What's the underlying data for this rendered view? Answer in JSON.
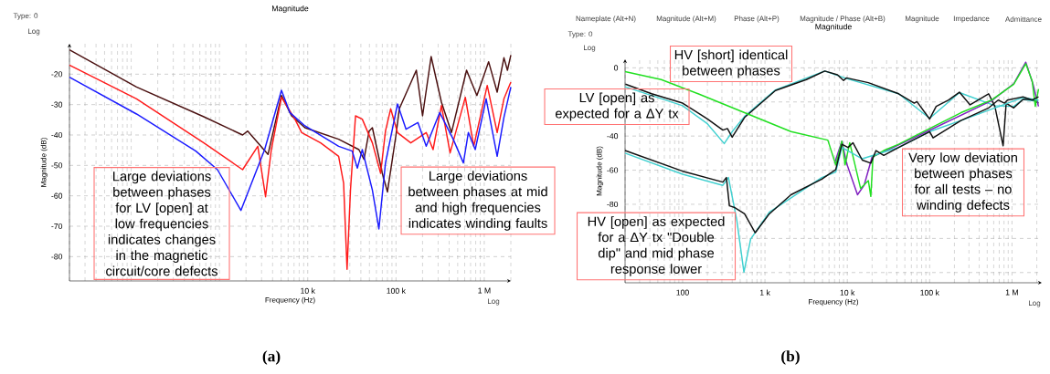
{
  "chart_data": [
    {
      "type": "line",
      "title": "Magnitude",
      "xlabel": "Frequency (Hz)",
      "ylabel": "Magnitude (dB)",
      "log": "x",
      "grid": true,
      "xlim": [
        20,
        2000000
      ],
      "ylim": [
        -88,
        -10
      ],
      "xticks": [
        {
          "value": 10000,
          "label": "10 k"
        },
        {
          "value": 100000,
          "label": "100 k"
        },
        {
          "value": 1000000,
          "label": "1 M"
        }
      ],
      "yticks": [
        -20,
        -30,
        -40,
        -50,
        -60,
        -70,
        -80
      ],
      "series": [
        {
          "color": "#4a1010",
          "x": [
            20,
            115,
            665,
            1830,
            2090,
            3550,
            5040,
            6560,
            9300,
            22400,
            38000,
            43400,
            49600,
            54000,
            70000,
            80000,
            100000,
            109000,
            170000,
            200000,
            250000,
            327000,
            425000,
            630000,
            825000,
            1120000,
            1400000,
            1670000,
            1830000,
            2000000
          ],
          "values": [
            -12,
            -24.2,
            -34,
            -40,
            -38.7,
            -46.4,
            -27,
            -33.7,
            -37.6,
            -41.4,
            -44.8,
            -48,
            -38.7,
            -37.6,
            -52.6,
            -58.7,
            -40,
            -31.4,
            -18.7,
            -33.7,
            -14.2,
            -29.2,
            -39.2,
            -18.7,
            -27,
            -15.9,
            -25.9,
            -14.6,
            -18.7,
            -13.7
          ]
        },
        {
          "color": "#ff1a1a",
          "x": [
            20,
            115,
            665,
            1830,
            2720,
            3330,
            3870,
            5040,
            7160,
            8540,
            14000,
            22400,
            25500,
            27900,
            30500,
            34800,
            41500,
            54000,
            67000,
            76000,
            87000,
            104000,
            147000,
            220000,
            263000,
            327000,
            410000,
            610000,
            760000,
            1080000,
            1400000,
            1670000,
            2000000
          ],
          "values": [
            -17,
            -28.1,
            -42.6,
            -51.4,
            -43.7,
            -60.3,
            -44.8,
            -27.6,
            -34.8,
            -39.2,
            -42.6,
            -47,
            -55.9,
            -84.2,
            -58.1,
            -33.7,
            -34.8,
            -42.6,
            -52.6,
            -38.7,
            -31.4,
            -39.2,
            -42.6,
            -39.2,
            -44.8,
            -30.3,
            -45.9,
            -27.6,
            -43.7,
            -23.7,
            -39.2,
            -28.1,
            -22.6
          ]
        },
        {
          "color": "#1a1aff",
          "x": [
            20,
            115,
            540,
            950,
            1750,
            3250,
            5040,
            6270,
            9300,
            22400,
            31900,
            36500,
            41500,
            54000,
            64000,
            76000,
            104000,
            130000,
            177000,
            220000,
            313000,
            445000,
            580000,
            660000,
            790000,
            1050000,
            1400000,
            1670000,
            2000000
          ],
          "values": [
            -21,
            -33.1,
            -45.3,
            -51.4,
            -64.8,
            -44.8,
            -25.3,
            -32.6,
            -37,
            -43.7,
            -45.3,
            -50.9,
            -44.8,
            -58.1,
            -70.9,
            -49.2,
            -29.8,
            -38.1,
            -35.9,
            -43.7,
            -32.6,
            -41.4,
            -49.2,
            -39.2,
            -44.8,
            -28.1,
            -47,
            -34.2,
            -24.2
          ]
        }
      ],
      "annotations": [
        "Large deviations between phases for LV [open] at low frequencies indicates changes in the magnetic circuit/core defects",
        "Large deviations between phases at mid and high frequencies indicates winding faults",
        "Type: 0",
        "Log",
        "Log",
        "(a)"
      ]
    },
    {
      "type": "line",
      "title": "Magnitude",
      "xlabel": "Frequency (Hz)",
      "ylabel": "Magnitude (dB)",
      "log": "x",
      "grid": true,
      "xlim": [
        20,
        2300000
      ],
      "ylim": [
        -126,
        5
      ],
      "xticks": [
        100,
        {
          "value": 1000,
          "label": "1 k"
        },
        {
          "value": 10000,
          "label": "10 k"
        },
        {
          "value": 100000,
          "label": "100 k"
        },
        {
          "value": 1000000,
          "label": "1 M"
        }
      ],
      "yticks": [
        0,
        {
          "value": -20,
          "label": null
        },
        -40,
        -60,
        -80,
        {
          "value": -100,
          "label": null
        },
        {
          "value": -120,
          "label": null
        }
      ],
      "series": [
        {
          "color": "#40d0d0",
          "x": [
            20,
            100,
            200,
            320,
            400,
            565,
            1340,
            5330,
            9800,
            42000,
            100000,
            230000,
            620000,
            1050000,
            1360000,
            2100000
          ],
          "values": [
            -11.1,
            -22.2,
            -32.8,
            -44.4,
            -37.4,
            -28.5,
            -13,
            -1.9,
            -6.3,
            -15.2,
            -29.6,
            -14.5,
            -22.2,
            -22.6,
            -18.5,
            -19.8
          ]
        },
        {
          "color": "#101010",
          "x": [
            20.2,
            42,
            100,
            200,
            308,
            350,
            400,
            565,
            1340,
            3180,
            5330,
            7600,
            9000,
            9800,
            18000,
            42000,
            65000,
            70000,
            100000,
            120000,
            170000,
            230000,
            310000,
            520000,
            620000,
            780000,
            850000,
            1050000,
            1360000,
            1760000,
            2100000
          ],
          "values": [
            -9.6,
            -15.2,
            -20.7,
            -30,
            -36.5,
            -35.6,
            -40.7,
            -29.1,
            -13.3,
            -6.9,
            -1.9,
            -4.1,
            -7.4,
            -5.9,
            -8.7,
            -15.2,
            -20.7,
            -19.8,
            -30,
            -22.6,
            -18.9,
            -14.3,
            -21.7,
            -15.2,
            -22.6,
            -45.7,
            -20.7,
            -23.5,
            -18.5,
            -18.5,
            -20.7
          ]
        },
        {
          "color": "#8020c0",
          "x": [
            7000,
            8600,
            9800,
            13300,
            16000,
            20000,
            42000,
            565000,
            1050000,
            1470000,
            1800000,
            2100000
          ],
          "values": [
            -56,
            -43,
            -56,
            -74.4,
            -68.9,
            -52.2,
            -45.2,
            -19.3,
            -9.3,
            3.3,
            -9.6,
            -22.6
          ]
        },
        {
          "color": "#20e020",
          "x": [
            20,
            55,
            154,
            565,
            2070,
            5800,
            7240,
            8600,
            9400,
            10700,
            14500,
            18000,
            19300,
            20500,
            27700,
            42000,
            100000,
            240000,
            565000,
            1050000,
            1470000,
            1760000,
            1920000,
            2100000
          ],
          "values": [
            -2.2,
            -6.9,
            -15.2,
            -26.3,
            -37.4,
            -42.4,
            -56.9,
            -43,
            -56.9,
            -43.9,
            -70.7,
            -66.1,
            -75.4,
            -52.2,
            -48.5,
            -44.8,
            -35.6,
            -26.3,
            -18.9,
            -9.6,
            2.4,
            -7.8,
            -22.6,
            -12.4
          ]
        },
        {
          "color": "#40d0d0",
          "x": [
            20,
            100,
            308,
            360,
            455,
            555,
            670,
            1130,
            4900,
            7240,
            8600,
            15200,
            42000,
            100000,
            240000,
            1360000,
            2100000
          ],
          "values": [
            -50,
            -62.4,
            -68.9,
            -64.3,
            -89.3,
            -119.8,
            -100.4,
            -84.6,
            -64.3,
            -61.1,
            -46.7,
            -53.3,
            -46.7,
            -37.4,
            -30.9,
            -17.4,
            -18.9
          ]
        },
        {
          "color": "#101010",
          "x": [
            20,
            100,
            308,
            340,
            370,
            430,
            565,
            760,
            1130,
            2070,
            4900,
            7240,
            8600,
            10200,
            11700,
            15200,
            19300,
            22300,
            27700,
            42000,
            100000,
            110000,
            240000,
            520000,
            680000,
            810000,
            880000,
            1360000,
            1760000,
            2100000
          ],
          "values": [
            -48.5,
            -60.6,
            -67,
            -64.3,
            -80.9,
            -81.9,
            -85.6,
            -96.7,
            -85.6,
            -74.4,
            -65.2,
            -59.6,
            -44.8,
            -46.7,
            -43.9,
            -54.1,
            -55.9,
            -48.5,
            -51.3,
            -46.7,
            -37.4,
            -41.1,
            -30.9,
            -23.5,
            -18.9,
            -20.7,
            -18.9,
            -17,
            -18.9,
            -17
          ]
        }
      ],
      "annotations": [
        "Nameplate (Alt+N)",
        "Magnitude (Alt+M)",
        "Phase (Alt+P)",
        "Magnitude / Phase (Alt+B)",
        "Magnitude",
        "Impedance",
        "Admittance",
        "Type: 0",
        "Log",
        "Log",
        "HV [short] identical between phases",
        "LV [open] as expected for a ΔY tx",
        "HV [open] as expected for a ΔY tx \"Double dip\" and mid phase response lower",
        "Very low deviation between phases for all tests – no winding defects",
        "(b)"
      ]
    }
  ]
}
